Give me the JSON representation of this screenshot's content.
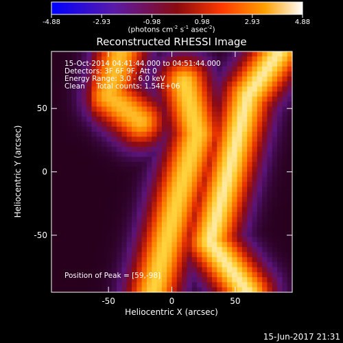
{
  "chart_data": {
    "type": "heatmap",
    "title": "Reconstructed RHESSI Image",
    "xlabel": "Heliocentric X (arcsec)",
    "ylabel": "Heliocentric Y (arcsec)",
    "xlim": [
      -95,
      95
    ],
    "ylim": [
      -95,
      95
    ],
    "xticks": [
      -50,
      0,
      50
    ],
    "yticks": [
      50,
      0,
      -50
    ],
    "colorbar": {
      "ticks": [
        "-4.88",
        "-2.93",
        "-0.98",
        "0.98",
        "2.93",
        "4.88"
      ],
      "range": [
        -4.88,
        4.88
      ],
      "unit_label": "(photons cm-2 s-1 asec-2)"
    },
    "annotations": [
      "15-Oct-2014 04:41:44.000 to 04:51:44.000",
      "Detectors: 3F 6F 9F, Att 0",
      "Energy Range: 3.0 - 6.0 keV",
      "Clean     Total counts: 1.54E+06"
    ],
    "peak_label": "Position of Peak = [59,-98]",
    "peak_position": [
      59,
      -98
    ],
    "bright_ridges": [
      {
        "description": "upper-left ridge",
        "points": [
          [
            -40,
            95
          ],
          [
            -50,
            60
          ],
          [
            -25,
            40
          ]
        ]
      },
      {
        "description": "central diagonal ridge",
        "points": [
          [
            10,
            70
          ],
          [
            20,
            30
          ],
          [
            5,
            -20
          ],
          [
            -15,
            -95
          ]
        ]
      },
      {
        "description": "right diagonal ridge",
        "points": [
          [
            85,
            95
          ],
          [
            60,
            60
          ],
          [
            45,
            0
          ],
          [
            30,
            -55
          ],
          [
            60,
            -95
          ]
        ]
      }
    ]
  },
  "footer_date": "15-Jun-2017 21:31"
}
